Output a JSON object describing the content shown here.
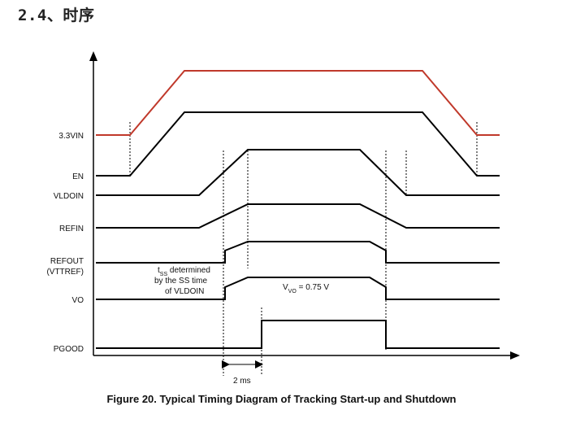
{
  "section_heading": "2.4、时序",
  "caption": "Figure 20.  Typical Timing Diagram of Tracking Start-up and Shutdown",
  "signals": {
    "vin": "3.3VIN",
    "en": "EN",
    "vldoin": "VLDOIN",
    "refin": "REFIN",
    "refout_1": "REFOUT",
    "refout_2": "(VTTREF)",
    "vo": "VO",
    "pgood": "PGOOD"
  },
  "annotations": {
    "tss_t": "t",
    "tss_sub": "SS",
    "tss_rest": " determined",
    "tss_line2": "by the SS time",
    "tss_line3": "of VLDOIN",
    "vvo_v": "V",
    "vvo_sub": "VO",
    "vvo_rest": " = 0.75 V",
    "delay": "2 ms"
  },
  "colors": {
    "vin_trace": "#c0392b",
    "trace": "#000000"
  }
}
